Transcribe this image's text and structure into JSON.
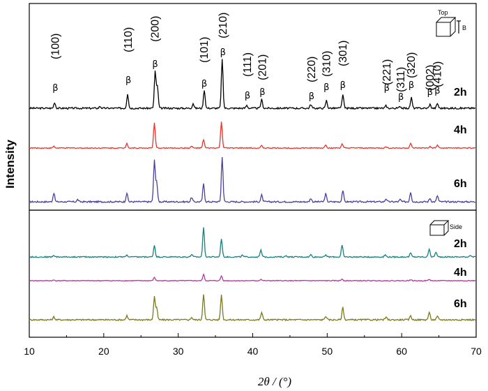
{
  "chart_data": {
    "type": "line",
    "xlabel": "2θ / (°)",
    "ylabel": "Intensity",
    "xlim": [
      10,
      70
    ],
    "x_ticks": [
      "10",
      "20",
      "30",
      "40",
      "50",
      "60",
      "70"
    ],
    "panels": [
      {
        "name": "top",
        "inset_label": "Top",
        "inset_axis_label": "B",
        "peak_labels": [
          {
            "hkl": "(100)",
            "x": 13.5
          },
          {
            "hkl": "(110)",
            "x": 23.3
          },
          {
            "hkl": "(200)",
            "x": 26.9
          },
          {
            "hkl": "(101)",
            "x": 33.5
          },
          {
            "hkl": "(210)",
            "x": 36.0
          },
          {
            "hkl": "(111)",
            "x": 39.3
          },
          {
            "hkl": "(201)",
            "x": 41.3
          },
          {
            "hkl": "(220)",
            "x": 47.9
          },
          {
            "hkl": "(310)",
            "x": 49.9
          },
          {
            "hkl": "(301)",
            "x": 52.1
          },
          {
            "hkl": "(221)",
            "x": 58.0
          },
          {
            "hkl": "(311)",
            "x": 59.9
          },
          {
            "hkl": "(320)",
            "x": 61.3
          },
          {
            "hkl": "(002)",
            "x": 63.8
          },
          {
            "hkl": "(410)",
            "x": 64.8
          }
        ],
        "peak_marker": "β",
        "series": [
          {
            "name": "2h",
            "color": "#000000",
            "peaks": [
              [
                13.4,
                0.12
              ],
              [
                19.5,
                0.04
              ],
              [
                23.2,
                0.3
              ],
              [
                26.9,
                0.75
              ],
              [
                27.2,
                0.45
              ],
              [
                32.0,
                0.1
              ],
              [
                33.5,
                0.38
              ],
              [
                35.9,
                1.0
              ],
              [
                39.2,
                0.06
              ],
              [
                41.2,
                0.18
              ],
              [
                47.8,
                0.08
              ],
              [
                49.9,
                0.16
              ],
              [
                52.1,
                0.28
              ],
              [
                57.9,
                0.05
              ],
              [
                59.8,
                0.04
              ],
              [
                61.3,
                0.22
              ],
              [
                63.8,
                0.08
              ],
              [
                64.8,
                0.1
              ]
            ]
          },
          {
            "name": "4h",
            "color": "#e8342a",
            "peaks": [
              [
                13.3,
                0.06
              ],
              [
                23.1,
                0.18
              ],
              [
                26.8,
                0.9
              ],
              [
                31.8,
                0.06
              ],
              [
                33.4,
                0.3
              ],
              [
                35.8,
                0.95
              ],
              [
                41.2,
                0.08
              ],
              [
                49.8,
                0.12
              ],
              [
                52.0,
                0.14
              ],
              [
                57.9,
                0.04
              ],
              [
                61.2,
                0.16
              ],
              [
                63.8,
                0.05
              ],
              [
                64.8,
                0.1
              ]
            ]
          },
          {
            "name": "6h",
            "color": "#4a3f9a",
            "peaks": [
              [
                13.3,
                0.2
              ],
              [
                16.5,
                0.05
              ],
              [
                23.1,
                0.2
              ],
              [
                26.8,
                0.92
              ],
              [
                27.1,
                0.45
              ],
              [
                31.8,
                0.1
              ],
              [
                33.4,
                0.4
              ],
              [
                35.9,
                1.0
              ],
              [
                41.2,
                0.15
              ],
              [
                47.8,
                0.08
              ],
              [
                49.8,
                0.18
              ],
              [
                52.1,
                0.26
              ],
              [
                57.9,
                0.07
              ],
              [
                59.8,
                0.05
              ],
              [
                61.2,
                0.22
              ],
              [
                63.8,
                0.08
              ],
              [
                64.8,
                0.14
              ]
            ]
          }
        ]
      },
      {
        "name": "bottom",
        "inset_label": "Side",
        "series": [
          {
            "name": "2h",
            "color": "#16807e",
            "peaks": [
              [
                13.3,
                0.05
              ],
              [
                23.1,
                0.06
              ],
              [
                26.8,
                0.35
              ],
              [
                31.8,
                0.08
              ],
              [
                33.4,
                0.9
              ],
              [
                35.8,
                0.55
              ],
              [
                38.6,
                0.05
              ],
              [
                41.1,
                0.2
              ],
              [
                44.5,
                0.04
              ],
              [
                47.8,
                0.07
              ],
              [
                49.8,
                0.07
              ],
              [
                52.0,
                0.35
              ],
              [
                57.8,
                0.06
              ],
              [
                61.2,
                0.12
              ],
              [
                63.7,
                0.25
              ],
              [
                64.6,
                0.15
              ],
              [
                69.2,
                0.06
              ]
            ]
          },
          {
            "name": "4h",
            "color": "#b8369a",
            "peaks": [
              [
                13.3,
                0.03
              ],
              [
                26.8,
                0.15
              ],
              [
                33.4,
                0.28
              ],
              [
                35.8,
                0.22
              ],
              [
                41.1,
                0.06
              ],
              [
                52.0,
                0.08
              ],
              [
                61.2,
                0.04
              ],
              [
                63.7,
                0.06
              ]
            ]
          },
          {
            "name": "6h",
            "color": "#7a7a1e",
            "peaks": [
              [
                13.3,
                0.07
              ],
              [
                23.1,
                0.1
              ],
              [
                26.8,
                0.55
              ],
              [
                27.1,
                0.28
              ],
              [
                31.8,
                0.06
              ],
              [
                33.4,
                0.62
              ],
              [
                35.8,
                0.6
              ],
              [
                41.2,
                0.18
              ],
              [
                49.8,
                0.09
              ],
              [
                52.1,
                0.3
              ],
              [
                57.9,
                0.06
              ],
              [
                61.2,
                0.1
              ],
              [
                63.7,
                0.18
              ],
              [
                64.8,
                0.08
              ]
            ]
          }
        ]
      }
    ]
  }
}
